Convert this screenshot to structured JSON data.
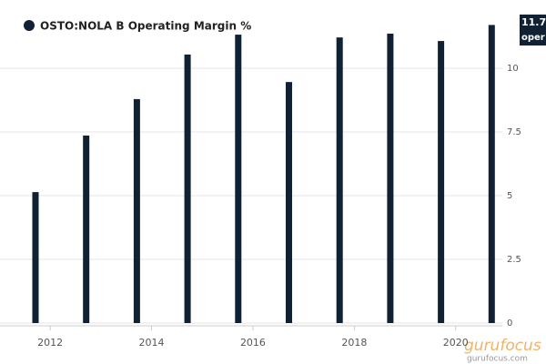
{
  "chart_data": {
    "type": "bar",
    "legend_title": "OSTO:NOLA B Operating Margin %",
    "x": [
      2011.71,
      2012.71,
      2013.71,
      2014.71,
      2015.71,
      2016.71,
      2017.71,
      2018.71,
      2019.71,
      2020.71
    ],
    "series": [
      {
        "name": "OSTO:NOLA B Operating Margin %",
        "color": "#0f2133",
        "values": [
          5.14,
          7.36,
          8.79,
          10.54,
          11.32,
          9.46,
          11.21,
          11.36,
          11.07,
          11.7
        ]
      }
    ],
    "xlim": [
      2011.01,
      2020.92
    ],
    "xticks": [
      2012,
      2014,
      2016,
      2018,
      2020
    ],
    "ylim": [
      0,
      12.68
    ],
    "yticks": [
      0,
      2.5,
      5,
      7.5,
      10
    ],
    "grid": true,
    "last_value_note": "oper",
    "watermark": "gurufocus",
    "watermark_sub": "gurufocus.com"
  }
}
